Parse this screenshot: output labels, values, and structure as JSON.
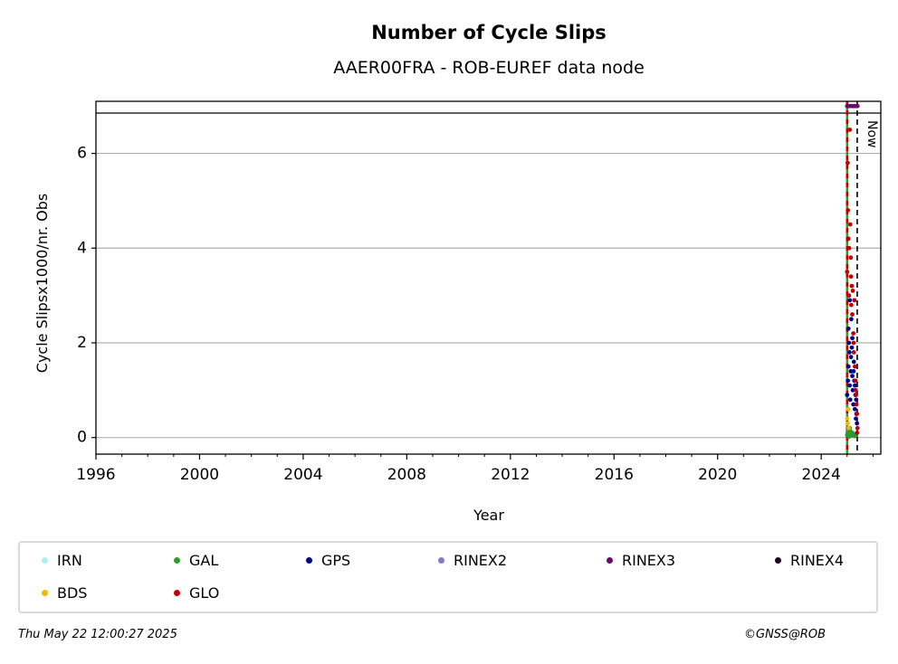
{
  "chart_data": {
    "type": "scatter",
    "title": "Number of Cycle Slips",
    "subtitle": "AAER00FRA - ROB-EUREF data node",
    "xlabel": "Year",
    "ylabel": "Cycle Slipsx1000/nr. Obs",
    "xlim": [
      1996,
      2026.3
    ],
    "ylim": [
      -0.35,
      7.1
    ],
    "x_ticks": [
      1996,
      2000,
      2004,
      2008,
      2012,
      2016,
      2020,
      2024
    ],
    "y_ticks": [
      0,
      2,
      4,
      6
    ],
    "grid": "horizontal",
    "now_label": "Now",
    "now_x": 2025.39,
    "series": [
      {
        "name": "IRN",
        "color": "#b0f0f8",
        "points": []
      },
      {
        "name": "GAL",
        "color": "#2e9a2e",
        "points": [
          [
            2025.0,
            0.05
          ],
          [
            2025.02,
            0.1
          ],
          [
            2025.05,
            0.15
          ],
          [
            2025.08,
            0.02
          ],
          [
            2025.1,
            0.2
          ],
          [
            2025.12,
            0.08
          ],
          [
            2025.15,
            0.12
          ],
          [
            2025.18,
            0.04
          ],
          [
            2025.2,
            0.1
          ],
          [
            2025.25,
            0.06
          ],
          [
            2025.3,
            0.03
          ],
          [
            2025.35,
            0.05
          ]
        ]
      },
      {
        "name": "GPS",
        "color": "#00008b",
        "points": [
          [
            2025.0,
            0.9
          ],
          [
            2025.03,
            1.2
          ],
          [
            2025.05,
            1.5
          ],
          [
            2025.07,
            2.0
          ],
          [
            2025.09,
            1.8
          ],
          [
            2025.1,
            1.1
          ],
          [
            2025.12,
            0.8
          ],
          [
            2025.14,
            1.4
          ],
          [
            2025.16,
            2.5
          ],
          [
            2025.18,
            1.9
          ],
          [
            2025.2,
            1.3
          ],
          [
            2025.22,
            1.0
          ],
          [
            2025.24,
            0.7
          ],
          [
            2025.26,
            1.6
          ],
          [
            2025.28,
            1.2
          ],
          [
            2025.3,
            0.6
          ],
          [
            2025.32,
            0.9
          ],
          [
            2025.34,
            0.4
          ],
          [
            2025.36,
            0.5
          ],
          [
            2025.38,
            0.3
          ],
          [
            2025.05,
            2.3
          ],
          [
            2025.1,
            2.9
          ],
          [
            2025.15,
            1.7
          ],
          [
            2025.2,
            2.1
          ],
          [
            2025.25,
            1.4
          ],
          [
            2025.3,
            1.1
          ],
          [
            2025.35,
            0.8
          ]
        ]
      },
      {
        "name": "RINEX2",
        "color": "#8878c8",
        "points": []
      },
      {
        "name": "RINEX3",
        "color": "#6a0a6a",
        "points": [
          [
            2025.0,
            7.0
          ],
          [
            2025.05,
            7.0
          ],
          [
            2025.1,
            7.0
          ],
          [
            2025.15,
            7.0
          ],
          [
            2025.2,
            7.0
          ],
          [
            2025.25,
            7.0
          ],
          [
            2025.3,
            7.0
          ],
          [
            2025.35,
            7.0
          ],
          [
            2025.4,
            7.0
          ]
        ]
      },
      {
        "name": "RINEX4",
        "color": "#200020",
        "points": []
      },
      {
        "name": "BDS",
        "color": "#f5b800",
        "points": [
          [
            2025.0,
            0.4
          ],
          [
            2025.02,
            0.3
          ],
          [
            2025.04,
            0.6
          ],
          [
            2025.06,
            0.2
          ]
        ]
      },
      {
        "name": "GLO",
        "color": "#c00000",
        "points": [
          [
            2025.0,
            3.5
          ],
          [
            2025.03,
            4.8
          ],
          [
            2025.05,
            4.2
          ],
          [
            2025.07,
            3.0
          ],
          [
            2025.1,
            6.5
          ],
          [
            2025.12,
            4.5
          ],
          [
            2025.14,
            3.8
          ],
          [
            2025.16,
            2.8
          ],
          [
            2025.18,
            3.2
          ],
          [
            2025.2,
            2.6
          ],
          [
            2025.22,
            3.1
          ],
          [
            2025.24,
            2.2
          ],
          [
            2025.26,
            1.8
          ],
          [
            2025.28,
            2.9
          ],
          [
            2025.3,
            1.5
          ],
          [
            2025.32,
            1.2
          ],
          [
            2025.34,
            0.9
          ],
          [
            2025.36,
            0.7
          ],
          [
            2025.38,
            0.5
          ],
          [
            2025.4,
            0.2
          ],
          [
            2025.02,
            5.8
          ],
          [
            2025.08,
            4.0
          ],
          [
            2025.15,
            3.4
          ],
          [
            2025.25,
            2.0
          ],
          [
            2025.33,
            1.0
          ],
          [
            2025.38,
            0.1
          ]
        ]
      }
    ]
  },
  "legend": [
    {
      "label": "IRN",
      "color": "#b0f0f8"
    },
    {
      "label": "GAL",
      "color": "#2e9a2e"
    },
    {
      "label": "GPS",
      "color": "#00008b"
    },
    {
      "label": "RINEX2",
      "color": "#8878c8"
    },
    {
      "label": "RINEX3",
      "color": "#6a0a6a"
    },
    {
      "label": "RINEX4",
      "color": "#200020"
    },
    {
      "label": "BDS",
      "color": "#f5b800"
    },
    {
      "label": "GLO",
      "color": "#c00000"
    }
  ],
  "footer": {
    "date": "Thu May 22 12:00:27 2025",
    "copyright": "©GNSS@ROB"
  }
}
